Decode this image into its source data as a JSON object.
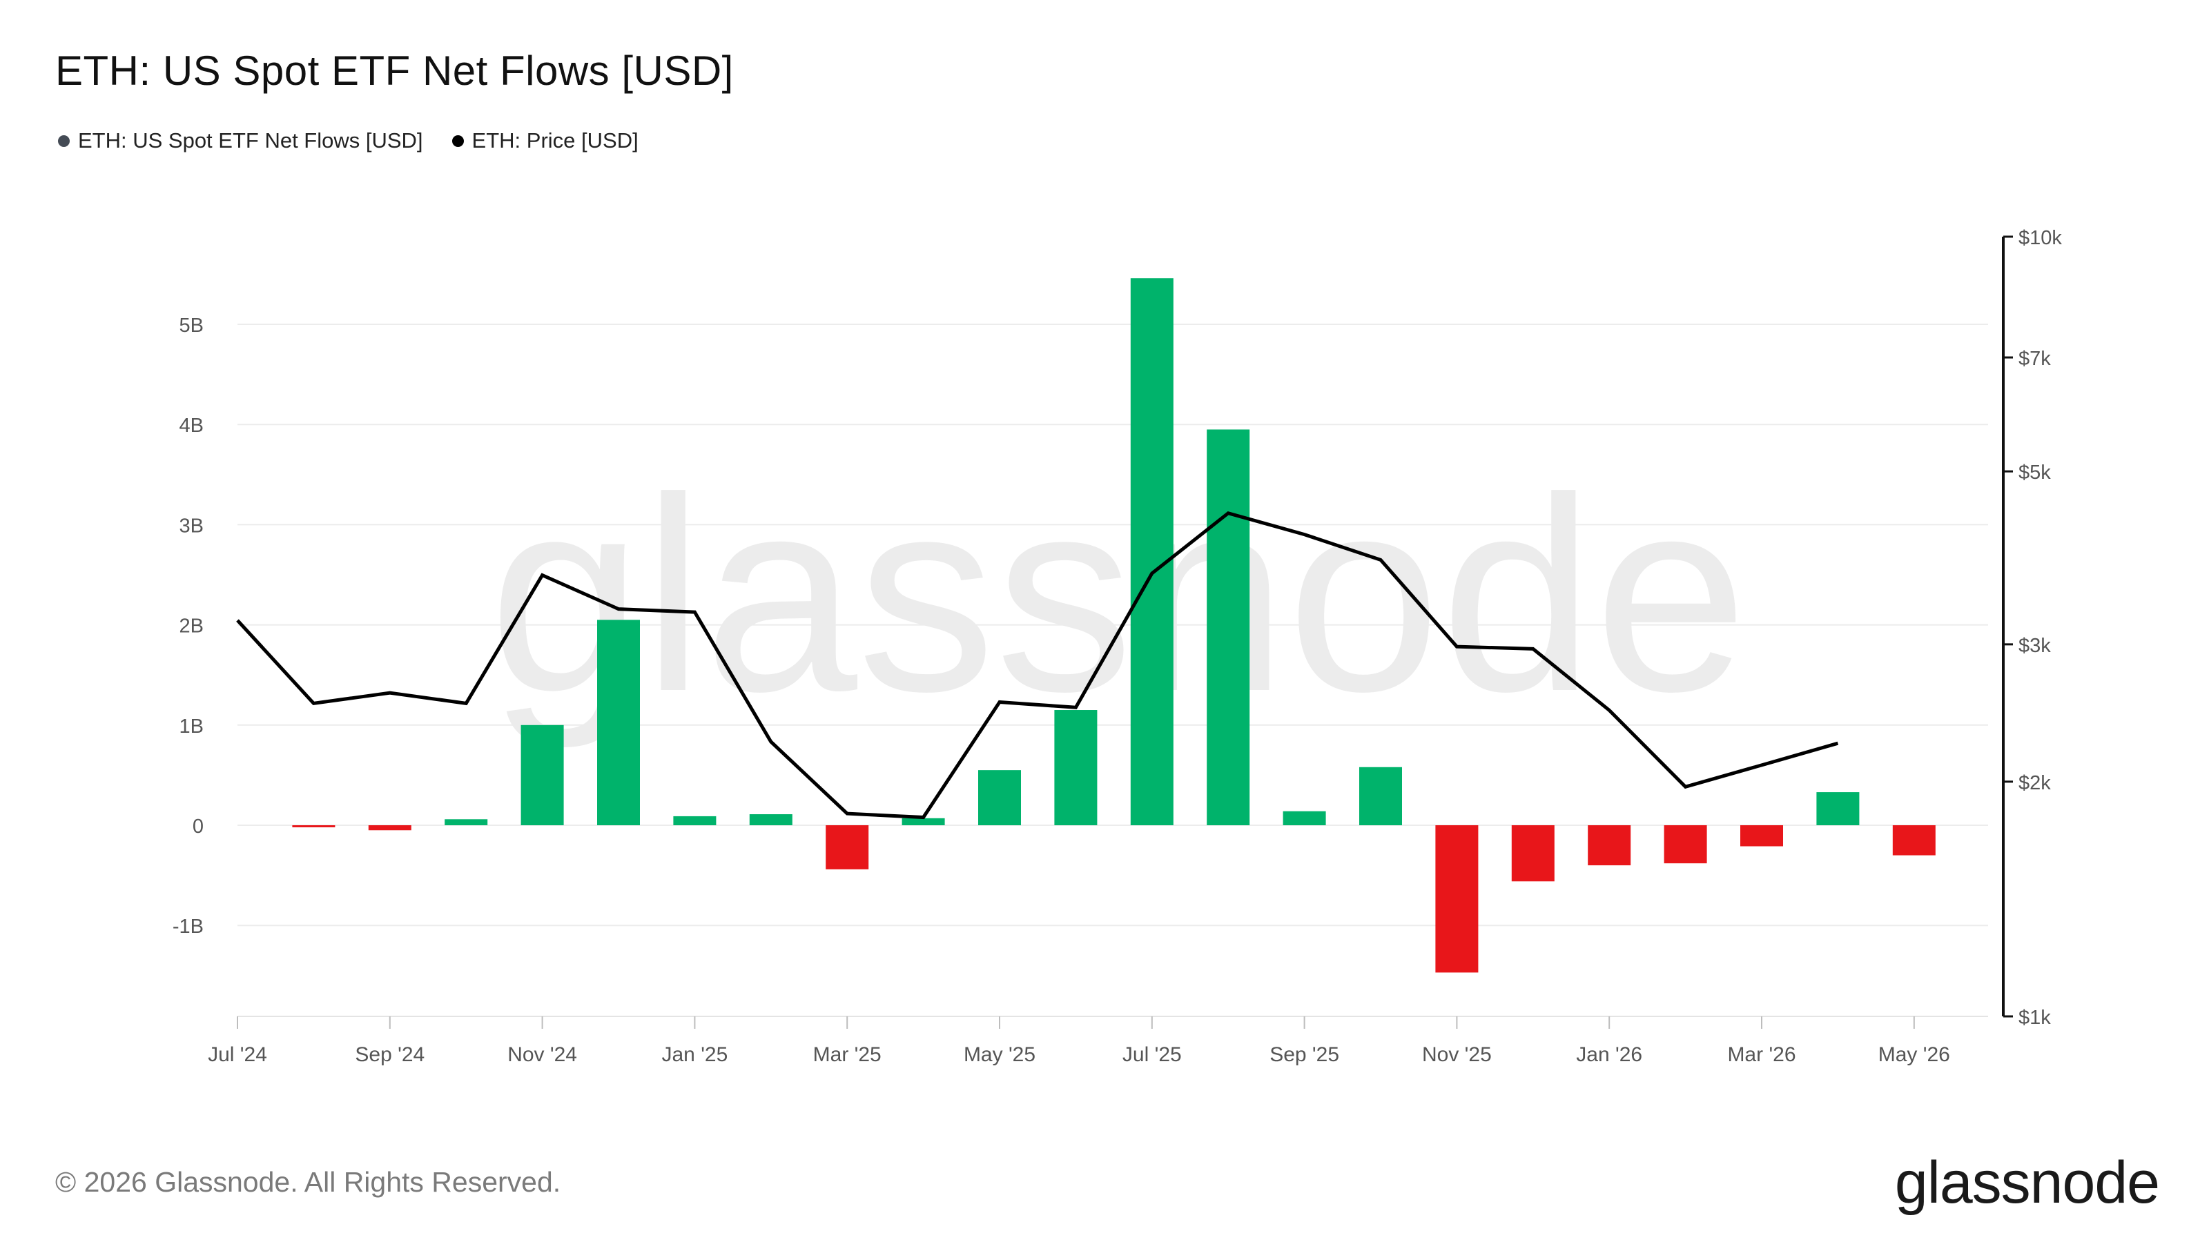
{
  "header": {
    "title": "ETH: US Spot ETF Net Flows [USD]"
  },
  "legend": [
    {
      "label": "ETH: US Spot ETF Net Flows [USD]",
      "color": "#444b55"
    },
    {
      "label": "ETH: Price [USD]",
      "color": "#000000"
    }
  ],
  "footer": {
    "copyright": "© 2026 Glassnode. All Rights Reserved.",
    "logo": "glassnode"
  },
  "watermark": "glassnode",
  "colors": {
    "positive": "#00b36b",
    "negative": "#e8161a",
    "price_line": "#000000",
    "grid": "#ececec"
  },
  "chart_data": {
    "type": "bar",
    "x_tick_labels": [
      "Jul '24",
      "Sep '24",
      "Nov '24",
      "Jan '25",
      "Mar '25",
      "May '25",
      "Jul '25",
      "Sep '25",
      "Nov '25",
      "Jan '26",
      "Mar '26",
      "May '26"
    ],
    "left_axis": {
      "tick_labels": [
        "-1B",
        "0",
        "1B",
        "2B",
        "3B",
        "4B",
        "5B"
      ],
      "tick_values": [
        -1,
        0,
        1,
        2,
        3,
        4,
        5
      ],
      "ylim": [
        -1.9,
        5.9
      ],
      "unit": "billion USD"
    },
    "right_axis": {
      "scale": "log",
      "tick_labels": [
        "$1k",
        "$2k",
        "$3k",
        "$5k",
        "$7k",
        "$10k"
      ],
      "tick_values": [
        1000,
        2000,
        3000,
        5000,
        7000,
        10000
      ],
      "ylim": [
        1000,
        10000
      ]
    },
    "series": [
      {
        "name": "ETH: US Spot ETF Net Flows [USD]",
        "type": "bar",
        "x": [
          "2024-07",
          "2024-08",
          "2024-09",
          "2024-10",
          "2024-11",
          "2024-12",
          "2025-01",
          "2025-02",
          "2025-03",
          "2025-04",
          "2025-05",
          "2025-06",
          "2025-07",
          "2025-08",
          "2025-09",
          "2025-10",
          "2025-11",
          "2025-12",
          "2026-01",
          "2026-02",
          "2026-03",
          "2026-04",
          "2026-05"
        ],
        "values": [
          0,
          -0.02,
          -0.05,
          0.06,
          1.0,
          2.05,
          0.09,
          0.11,
          -0.44,
          0.07,
          0.55,
          1.15,
          5.46,
          3.95,
          0.14,
          0.58,
          -1.47,
          -0.56,
          -0.4,
          -0.38,
          -0.21,
          0.33,
          -0.3
        ]
      },
      {
        "name": "ETH: Price [USD]",
        "type": "line",
        "x": [
          "2024-07",
          "2024-08",
          "2024-09",
          "2024-10",
          "2024-11",
          "2024-12",
          "2025-01",
          "2025-02",
          "2025-03",
          "2025-04",
          "2025-05",
          "2025-06",
          "2025-07",
          "2025-08",
          "2025-09",
          "2025-10",
          "2025-11",
          "2025-12",
          "2026-01",
          "2026-02",
          "2026-03",
          "2026-04"
        ],
        "values": [
          3220,
          2520,
          2600,
          2520,
          3680,
          3330,
          3300,
          2250,
          1820,
          1800,
          2530,
          2490,
          3700,
          4420,
          4150,
          3850,
          2980,
          2960,
          2470,
          1970,
          2100,
          2240
        ]
      }
    ],
    "grid": true,
    "legend_position": "top-left"
  }
}
